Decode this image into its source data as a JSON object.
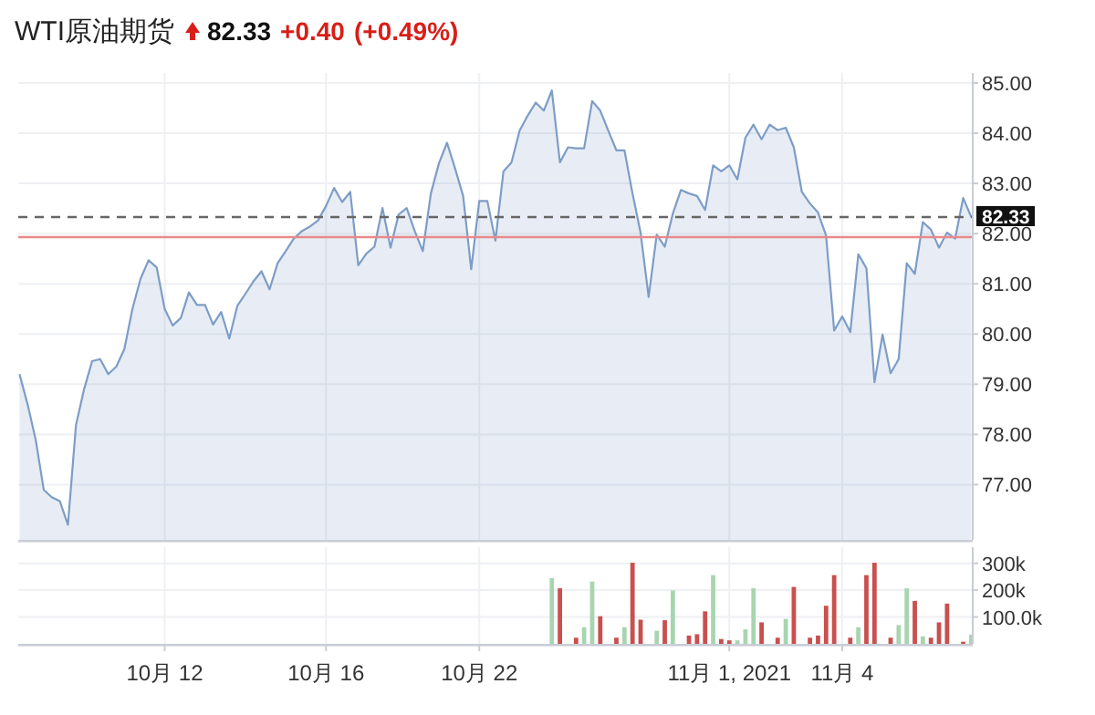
{
  "chart_data": [
    {
      "type": "area",
      "title": "WTI原油期货",
      "annotations": [
        "82.33",
        "+0.40",
        "(+0.49%)"
      ],
      "categories": [
        null,
        null,
        null,
        null,
        null,
        null,
        null,
        null,
        null,
        null,
        null,
        null,
        null,
        null,
        null,
        null,
        null,
        null,
        null,
        null,
        null,
        null,
        null,
        null,
        null,
        null,
        null,
        null,
        null,
        null,
        null,
        null,
        null,
        null,
        null,
        null,
        null,
        null,
        null,
        null,
        null,
        null,
        null,
        null,
        null,
        null,
        null,
        null,
        null,
        null,
        null,
        null,
        null,
        null,
        null,
        null,
        null,
        null,
        null,
        null,
        null,
        null,
        null,
        null,
        null,
        null,
        null,
        null,
        null,
        null,
        null,
        null,
        null,
        null,
        null,
        null,
        null,
        null,
        null,
        null,
        null,
        null,
        null,
        null,
        null,
        null,
        null,
        null,
        null,
        null,
        null,
        null,
        null,
        null,
        null,
        null,
        null,
        null,
        null,
        null,
        null,
        null,
        null,
        null,
        null,
        null,
        null,
        null,
        null,
        null,
        null,
        null,
        null,
        null,
        null,
        null,
        null,
        null,
        null
      ],
      "values": [
        79.2,
        78.6,
        77.9,
        76.9,
        76.75,
        76.67,
        76.2,
        78.19,
        78.9,
        79.46,
        79.5,
        79.2,
        79.35,
        79.7,
        80.5,
        81.1,
        81.47,
        81.33,
        80.5,
        80.17,
        80.32,
        80.83,
        80.58,
        80.58,
        80.19,
        80.44,
        79.91,
        80.56,
        80.8,
        81.05,
        81.25,
        80.89,
        81.41,
        81.65,
        81.9,
        82.05,
        82.14,
        82.26,
        82.55,
        82.91,
        82.63,
        82.83,
        81.37,
        81.6,
        81.74,
        82.51,
        81.72,
        82.38,
        82.51,
        82.05,
        81.65,
        82.8,
        83.4,
        83.81,
        83.3,
        82.75,
        81.29,
        82.65,
        82.65,
        81.86,
        83.24,
        83.42,
        84.05,
        84.35,
        84.61,
        84.45,
        84.85,
        83.42,
        83.72,
        83.7,
        83.7,
        84.64,
        84.45,
        84.05,
        83.66,
        83.66,
        82.8,
        82.02,
        80.74,
        81.98,
        81.74,
        82.4,
        82.87,
        82.8,
        82.75,
        82.47,
        83.36,
        83.24,
        83.36,
        83.08,
        83.91,
        84.17,
        83.88,
        84.17,
        84.06,
        84.11,
        83.72,
        82.83,
        82.6,
        82.42,
        81.96,
        80.07,
        80.35,
        80.04,
        81.59,
        81.31,
        79.04,
        79.99,
        79.22,
        79.5,
        81.41,
        81.2,
        82.23,
        82.08,
        81.72,
        82.02,
        81.9,
        82.71,
        82.33
      ],
      "color": "#7d9dc7",
      "ylim": [
        75.9,
        85.2
      ],
      "yticks": [
        {
          "value": 77,
          "label": "77.00"
        },
        {
          "value": 78,
          "label": "78.00"
        },
        {
          "value": 79,
          "label": "79.00"
        },
        {
          "value": 80,
          "label": "80.00"
        },
        {
          "value": 81,
          "label": "81.00"
        },
        {
          "value": 82,
          "label": "82.00"
        },
        {
          "value": 83,
          "label": "83.00"
        },
        {
          "value": 84,
          "label": "84.00"
        },
        {
          "value": 85,
          "label": "85.00"
        }
      ],
      "ref_lines": [
        {
          "axis": "y",
          "value": 82.33,
          "label": "82.33",
          "color": "#666666",
          "line_style": "dashed"
        },
        {
          "axis": "y",
          "value": 81.93,
          "color": "#e88a8a",
          "line_style": "solid"
        }
      ],
      "grid": true,
      "tick_labels": "y"
    },
    {
      "type": "bar",
      "categories": [
        null,
        null,
        null,
        null,
        null,
        null,
        null,
        null,
        null,
        null,
        null,
        null,
        null,
        null,
        null,
        null,
        null,
        null,
        "10月 12",
        null,
        null,
        null,
        null,
        null,
        null,
        null,
        null,
        null,
        null,
        null,
        null,
        null,
        null,
        null,
        null,
        null,
        null,
        null,
        "10月 16",
        null,
        null,
        null,
        null,
        null,
        null,
        null,
        null,
        null,
        null,
        null,
        null,
        null,
        null,
        null,
        null,
        null,
        null,
        "10月 22",
        null,
        null,
        null,
        null,
        null,
        null,
        null,
        null,
        null,
        null,
        null,
        null,
        null,
        null,
        null,
        null,
        null,
        null,
        null,
        null,
        null,
        null,
        null,
        null,
        null,
        null,
        null,
        null,
        null,
        null,
        "11月 1, 2021",
        null,
        null,
        null,
        null,
        null,
        null,
        null,
        null,
        null,
        null,
        null,
        null,
        null,
        "11月 4",
        null,
        null,
        null,
        null,
        null,
        null,
        null,
        null,
        null,
        null,
        null,
        null,
        null,
        null,
        null,
        null
      ],
      "values": [
        null,
        null,
        null,
        null,
        null,
        null,
        null,
        null,
        null,
        null,
        null,
        null,
        null,
        null,
        null,
        null,
        null,
        null,
        null,
        null,
        null,
        null,
        null,
        null,
        null,
        null,
        null,
        null,
        null,
        null,
        null,
        null,
        null,
        null,
        null,
        null,
        null,
        null,
        null,
        null,
        null,
        null,
        null,
        null,
        null,
        null,
        null,
        null,
        null,
        null,
        null,
        null,
        null,
        null,
        null,
        null,
        null,
        null,
        null,
        null,
        null,
        null,
        null,
        null,
        null,
        null,
        245000,
        207000,
        null,
        23000,
        62000,
        232000,
        103000,
        null,
        23000,
        62000,
        302000,
        90000,
        null,
        49000,
        88000,
        199000,
        null,
        31000,
        36000,
        121000,
        256000,
        18000,
        13000,
        13000,
        54000,
        207000,
        80000,
        null,
        23000,
        93000,
        212000,
        null,
        23000,
        31000,
        142000,
        256000,
        null,
        23000,
        62000,
        256000,
        302000,
        null,
        23000,
        70000,
        207000,
        160000,
        28000,
        23000,
        80000,
        150000,
        null,
        8000,
        34000
      ],
      "colors": [
        null,
        null,
        null,
        null,
        null,
        null,
        null,
        null,
        null,
        null,
        null,
        null,
        null,
        null,
        null,
        null,
        null,
        null,
        null,
        null,
        null,
        null,
        null,
        null,
        null,
        null,
        null,
        null,
        null,
        null,
        null,
        null,
        null,
        null,
        null,
        null,
        null,
        null,
        null,
        null,
        null,
        null,
        null,
        null,
        null,
        null,
        null,
        null,
        null,
        null,
        null,
        null,
        null,
        null,
        null,
        null,
        null,
        null,
        null,
        null,
        null,
        null,
        null,
        null,
        null,
        null,
        "#a8d5b0",
        "#c8504e",
        null,
        "#c8504e",
        "#a8d5b0",
        "#a8d5b0",
        "#c8504e",
        null,
        "#c8504e",
        "#a8d5b0",
        "#c8504e",
        "#c8504e",
        null,
        "#a8d5b0",
        "#c8504e",
        "#a8d5b0",
        null,
        "#c8504e",
        "#c8504e",
        "#c8504e",
        "#a8d5b0",
        "#c8504e",
        "#c8504e",
        "#a8d5b0",
        "#a8d5b0",
        "#a8d5b0",
        "#c8504e",
        null,
        "#c8504e",
        "#a8d5b0",
        "#c8504e",
        null,
        "#c8504e",
        "#c8504e",
        "#c8504e",
        "#c8504e",
        null,
        "#c8504e",
        "#a8d5b0",
        "#c8504e",
        "#c8504e",
        null,
        "#c8504e",
        "#a8d5b0",
        "#a8d5b0",
        "#c8504e",
        "#a8d5b0",
        "#c8504e",
        "#c8504e",
        "#c8504e",
        null,
        "#c8504e",
        "#a8d5b0"
      ],
      "ylim": [
        0,
        360000
      ],
      "yticks": [
        {
          "value": 100000,
          "label": "100.0k"
        },
        {
          "value": 200000,
          "label": "200k"
        },
        {
          "value": 300000,
          "label": "300k"
        }
      ],
      "grid": true
    }
  ]
}
